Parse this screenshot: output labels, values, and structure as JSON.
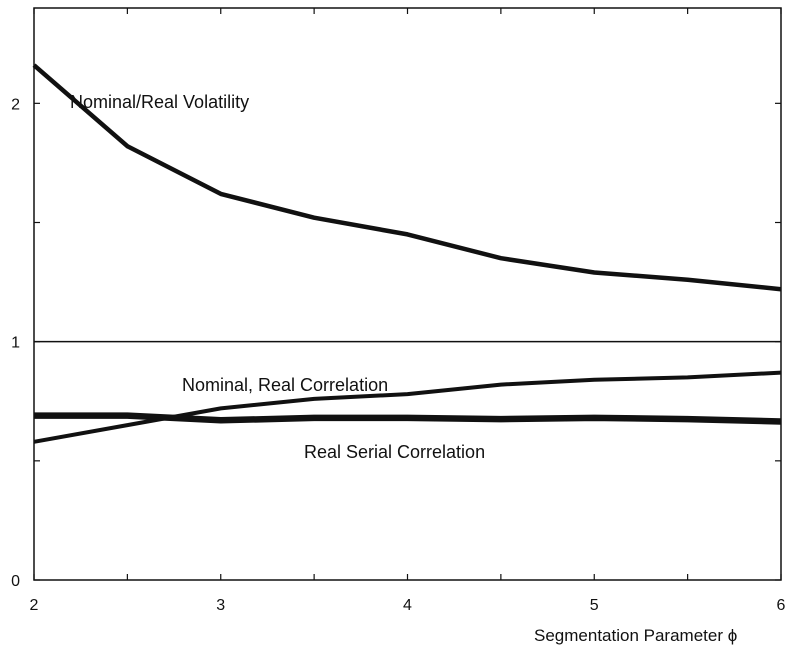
{
  "chart_data": {
    "type": "line",
    "title": "",
    "xlabel": "Segmentation Parameter ϕ",
    "ylabel": "",
    "xlim": [
      2,
      6
    ],
    "ylim": [
      0,
      2.4
    ],
    "x_ticks": [
      2,
      2.5,
      3,
      3.5,
      4,
      4.5,
      5,
      5.5,
      6
    ],
    "x_tick_labels": [
      "2",
      "",
      "3",
      "",
      "4",
      "",
      "5",
      "",
      "6"
    ],
    "y_ticks": [
      0,
      0.5,
      1,
      1.5,
      2
    ],
    "y_tick_labels": [
      "0",
      "",
      "1",
      "",
      "2"
    ],
    "reference_lines": [
      {
        "axis": "y",
        "value": 1
      }
    ],
    "grid": false,
    "series": [
      {
        "name": "Nominal/Real Volatility",
        "x": [
          2,
          2.5,
          3,
          3.5,
          4,
          4.5,
          5,
          5.5,
          6
        ],
        "values": [
          2.16,
          1.82,
          1.62,
          1.52,
          1.45,
          1.35,
          1.29,
          1.26,
          1.22
        ],
        "stroke_width": 4.5
      },
      {
        "name": "Nominal, Real Correlation",
        "x": [
          2,
          2.5,
          3,
          3.5,
          4,
          4.5,
          5,
          5.5,
          6
        ],
        "values": [
          0.58,
          0.65,
          0.72,
          0.76,
          0.78,
          0.82,
          0.84,
          0.85,
          0.87
        ],
        "stroke_width": 4
      },
      {
        "name": "Real Serial Correlation",
        "x": [
          2,
          2.5,
          3,
          3.5,
          4,
          4.5,
          5,
          5.5,
          6
        ],
        "values": [
          0.69,
          0.69,
          0.67,
          0.68,
          0.68,
          0.675,
          0.68,
          0.675,
          0.665
        ],
        "stroke_width": 6.5
      }
    ],
    "colors": {
      "line": "#111111",
      "axis": "#111111"
    }
  }
}
